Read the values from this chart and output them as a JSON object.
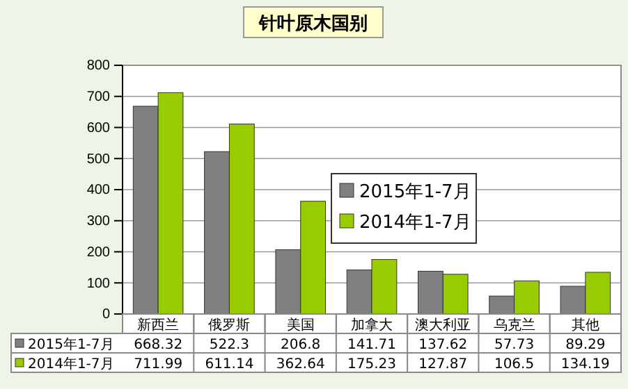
{
  "chart_data": {
    "type": "bar",
    "title": "针叶原木国别",
    "categories": [
      "新西兰",
      "俄罗斯",
      "美国",
      "加拿大",
      "澳大利亚",
      "乌克兰",
      "其他"
    ],
    "series": [
      {
        "name": "2015年1-7月",
        "color": "#808080",
        "values": [
          668.32,
          522.3,
          206.8,
          141.71,
          137.62,
          57.73,
          89.29
        ]
      },
      {
        "name": "2014年1-7月",
        "color": "#99cc00",
        "values": [
          711.99,
          611.14,
          362.64,
          175.23,
          127.87,
          106.5,
          134.19
        ]
      }
    ],
    "ylim": [
      0,
      800
    ],
    "yticks": [
      0,
      100,
      200,
      300,
      400,
      500,
      600,
      700,
      800
    ],
    "grid": "y",
    "legend": "right",
    "data_labels": true
  }
}
